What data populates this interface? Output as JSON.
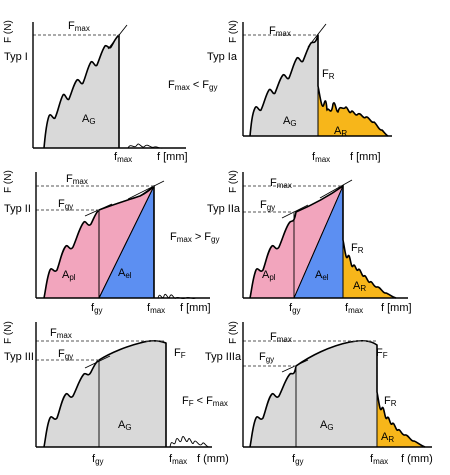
{
  "panels": [
    {
      "id": "typ1",
      "type_label": "Typ I",
      "fmax": "F",
      "fmax_sub": "max",
      "ag": "A",
      "ag_sub": "G",
      "xlabel": "f [mm]",
      "xtick": "f",
      "xtick_sub": "max"
    },
    {
      "id": "typ1a",
      "type_label": "Typ Ia",
      "fmax": "F",
      "fmax_sub": "max",
      "fr": "F",
      "fr_sub": "R",
      "ag": "A",
      "ag_sub": "G",
      "ar": "A",
      "ar_sub": "R",
      "xlabel": "f [mm]",
      "xtick": "f",
      "xtick_sub": "max"
    },
    {
      "id": "typ2",
      "type_label": "Typ II",
      "fmax": "F",
      "fmax_sub": "max",
      "fgy": "F",
      "fgy_sub": "gy",
      "apl": "A",
      "apl_sub": "pl",
      "ael": "A",
      "ael_sub": "el",
      "xlabel": "f [mm]",
      "xtick1": "f",
      "xtick1_sub": "gy",
      "xtick2": "f",
      "xtick2_sub": "max"
    },
    {
      "id": "typ2a",
      "type_label": "Typ IIa",
      "fmax": "F",
      "fmax_sub": "max",
      "fgy": "F",
      "fgy_sub": "gy",
      "fr": "F",
      "fr_sub": "R",
      "apl": "A",
      "apl_sub": "pl",
      "ael": "A",
      "ael_sub": "el",
      "ar": "A",
      "ar_sub": "R",
      "xlabel": "f [mm]",
      "xtick1": "f",
      "xtick1_sub": "gy",
      "xtick2": "f",
      "xtick2_sub": "max"
    },
    {
      "id": "typ3",
      "type_label": "Typ III",
      "fmax": "F",
      "fmax_sub": "max",
      "fgy": "F",
      "fgy_sub": "gy",
      "ff": "F",
      "ff_sub": "F",
      "ag": "A",
      "ag_sub": "G",
      "xlabel": "f (mm)",
      "xtick1": "f",
      "xtick1_sub": "gy",
      "xtick2": "f",
      "xtick2_sub": "max"
    },
    {
      "id": "typ3a",
      "type_label": "Typ IIIa",
      "fmax": "F",
      "fmax_sub": "max",
      "fgy": "F",
      "fgy_sub": "gy",
      "ff": "F",
      "ff_sub": "F",
      "fr": "F",
      "fr_sub": "R",
      "ag": "A",
      "ag_sub": "G",
      "ar": "A",
      "ar_sub": "R",
      "xlabel": "f (mm)",
      "xtick1": "f",
      "xtick1_sub": "gy",
      "xtick2": "f",
      "xtick2_sub": "max"
    }
  ],
  "y_axis_label": "F (N)",
  "conditions": [
    {
      "a": "F",
      "a_sub": "max",
      "op": "<",
      "b": "F",
      "b_sub": "gy"
    },
    {
      "a": "F",
      "a_sub": "max",
      "op": ">",
      "b": "F",
      "b_sub": "gy"
    },
    {
      "a": "F",
      "a_sub": "F",
      "op": "<",
      "b": "F",
      "b_sub": "max"
    }
  ],
  "colors": {
    "ag_area": "#d9d9d9",
    "ar_area": "#f7b61a",
    "apl_area": "#f2a5bd",
    "ael_area": "#5c8ff2"
  }
}
